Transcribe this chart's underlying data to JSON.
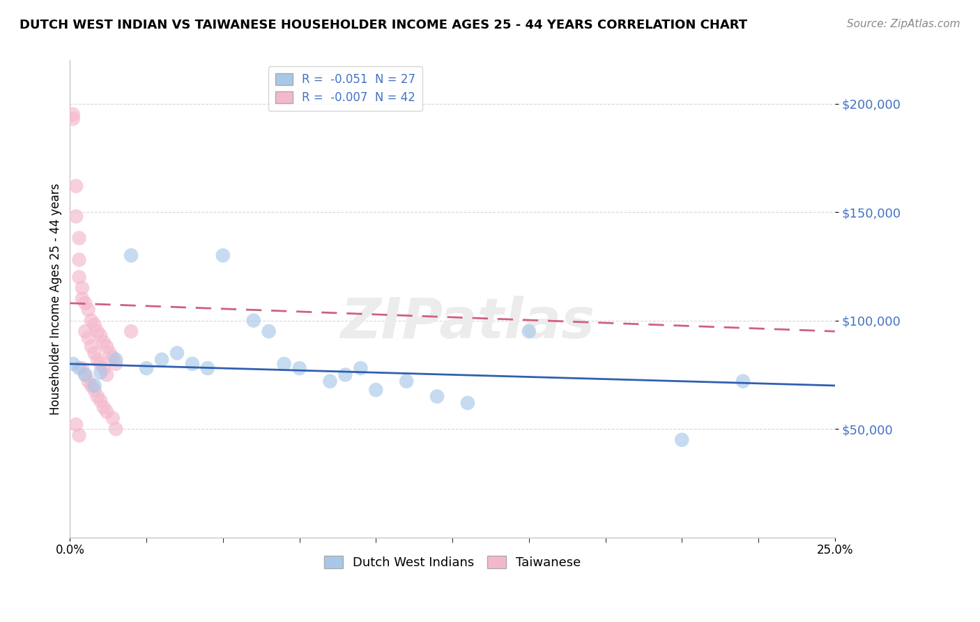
{
  "title": "DUTCH WEST INDIAN VS TAIWANESE HOUSEHOLDER INCOME AGES 25 - 44 YEARS CORRELATION CHART",
  "source": "Source: ZipAtlas.com",
  "ylabel": "Householder Income Ages 25 - 44 years",
  "watermark": "ZIPatlas",
  "blue_color": "#a8c8e8",
  "pink_color": "#f4b8cc",
  "blue_line_color": "#3060b0",
  "pink_line_color": "#d06080",
  "grid_color": "#d8d8d8",
  "background_color": "#ffffff",
  "xlim": [
    0.0,
    0.25
  ],
  "ylim": [
    0,
    220000
  ],
  "legend_R1": "R = ",
  "legend_v1": "-0.051",
  "legend_N1": "  N = ",
  "legend_n1": "27",
  "legend_R2": "R = ",
  "legend_v2": "-0.007",
  "legend_N2": "  N = ",
  "legend_n2": "42",
  "dutch_points": [
    [
      0.001,
      80000
    ],
    [
      0.003,
      78000
    ],
    [
      0.005,
      75000
    ],
    [
      0.008,
      70000
    ],
    [
      0.01,
      76000
    ],
    [
      0.015,
      82000
    ],
    [
      0.02,
      130000
    ],
    [
      0.025,
      78000
    ],
    [
      0.03,
      82000
    ],
    [
      0.035,
      85000
    ],
    [
      0.04,
      80000
    ],
    [
      0.045,
      78000
    ],
    [
      0.05,
      130000
    ],
    [
      0.06,
      100000
    ],
    [
      0.065,
      95000
    ],
    [
      0.07,
      80000
    ],
    [
      0.075,
      78000
    ],
    [
      0.085,
      72000
    ],
    [
      0.09,
      75000
    ],
    [
      0.095,
      78000
    ],
    [
      0.1,
      68000
    ],
    [
      0.11,
      72000
    ],
    [
      0.12,
      65000
    ],
    [
      0.13,
      62000
    ],
    [
      0.15,
      95000
    ],
    [
      0.2,
      45000
    ],
    [
      0.22,
      72000
    ]
  ],
  "taiwanese_points": [
    [
      0.001,
      195000
    ],
    [
      0.001,
      193000
    ],
    [
      0.002,
      162000
    ],
    [
      0.002,
      148000
    ],
    [
      0.003,
      138000
    ],
    [
      0.003,
      128000
    ],
    [
      0.003,
      120000
    ],
    [
      0.004,
      115000
    ],
    [
      0.004,
      110000
    ],
    [
      0.005,
      108000
    ],
    [
      0.005,
      95000
    ],
    [
      0.006,
      105000
    ],
    [
      0.006,
      92000
    ],
    [
      0.007,
      100000
    ],
    [
      0.007,
      88000
    ],
    [
      0.008,
      98000
    ],
    [
      0.008,
      85000
    ],
    [
      0.009,
      95000
    ],
    [
      0.009,
      82000
    ],
    [
      0.01,
      93000
    ],
    [
      0.01,
      80000
    ],
    [
      0.011,
      90000
    ],
    [
      0.011,
      78000
    ],
    [
      0.012,
      88000
    ],
    [
      0.012,
      75000
    ],
    [
      0.013,
      85000
    ],
    [
      0.014,
      83000
    ],
    [
      0.015,
      80000
    ],
    [
      0.015,
      50000
    ],
    [
      0.002,
      52000
    ],
    [
      0.003,
      47000
    ],
    [
      0.004,
      78000
    ],
    [
      0.005,
      75000
    ],
    [
      0.006,
      72000
    ],
    [
      0.007,
      70000
    ],
    [
      0.008,
      68000
    ],
    [
      0.009,
      65000
    ],
    [
      0.01,
      63000
    ],
    [
      0.011,
      60000
    ],
    [
      0.012,
      58000
    ],
    [
      0.014,
      55000
    ],
    [
      0.02,
      95000
    ]
  ],
  "dutch_trend": [
    0.0,
    0.25,
    80000,
    70000
  ],
  "taiwanese_trend": [
    0.0,
    0.25,
    108000,
    95000
  ]
}
